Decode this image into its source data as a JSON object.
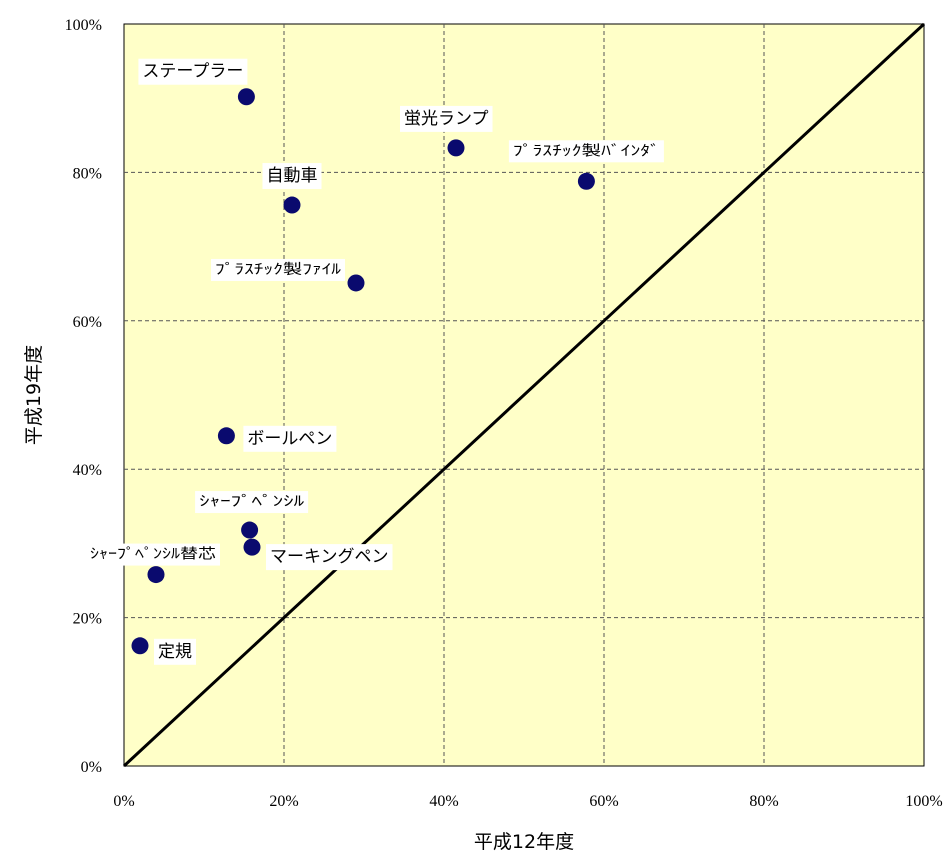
{
  "chart_data": {
    "type": "scatter",
    "xlabel": "平成12年度",
    "ylabel": "平成19年度",
    "xlim": [
      0,
      100
    ],
    "ylim": [
      0,
      100
    ],
    "x_ticks": [
      "0%",
      "20%",
      "40%",
      "60%",
      "80%",
      "100%"
    ],
    "y_ticks": [
      "0%",
      "20%",
      "40%",
      "60%",
      "80%",
      "100%"
    ],
    "grid": true,
    "reference_line": "y = x",
    "colors": {
      "plot_bg": "#ffffc8",
      "marker": "#0a0a6e",
      "grid": "#555555",
      "line": "#000000"
    },
    "points": [
      {
        "label": "ステープラー",
        "x": 15.3,
        "y": 90.2
      },
      {
        "label": "蛍光ランプ",
        "x": 41.5,
        "y": 83.3
      },
      {
        "label": "ﾌﾟﾗｽﾁｯｸ製ﾊﾞｲﾝﾀﾞ",
        "x": 57.8,
        "y": 78.8
      },
      {
        "label": "自動車",
        "x": 21.0,
        "y": 75.6
      },
      {
        "label": "ﾌﾟﾗｽﾁｯｸ製ﾌｧｲﾙ",
        "x": 29.0,
        "y": 65.1
      },
      {
        "label": "ボールペン",
        "x": 12.8,
        "y": 44.5
      },
      {
        "label": "ｼｬｰﾌﾟﾍﾟﾝｼﾙ",
        "x": 15.7,
        "y": 31.8
      },
      {
        "label": "マーキングペン",
        "x": 16.0,
        "y": 29.5
      },
      {
        "label": "ｼｬｰﾌﾟﾍﾟﾝｼﾙ替芯",
        "x": 4.0,
        "y": 25.8
      },
      {
        "label": "定規",
        "x": 2.0,
        "y": 16.2
      }
    ]
  }
}
